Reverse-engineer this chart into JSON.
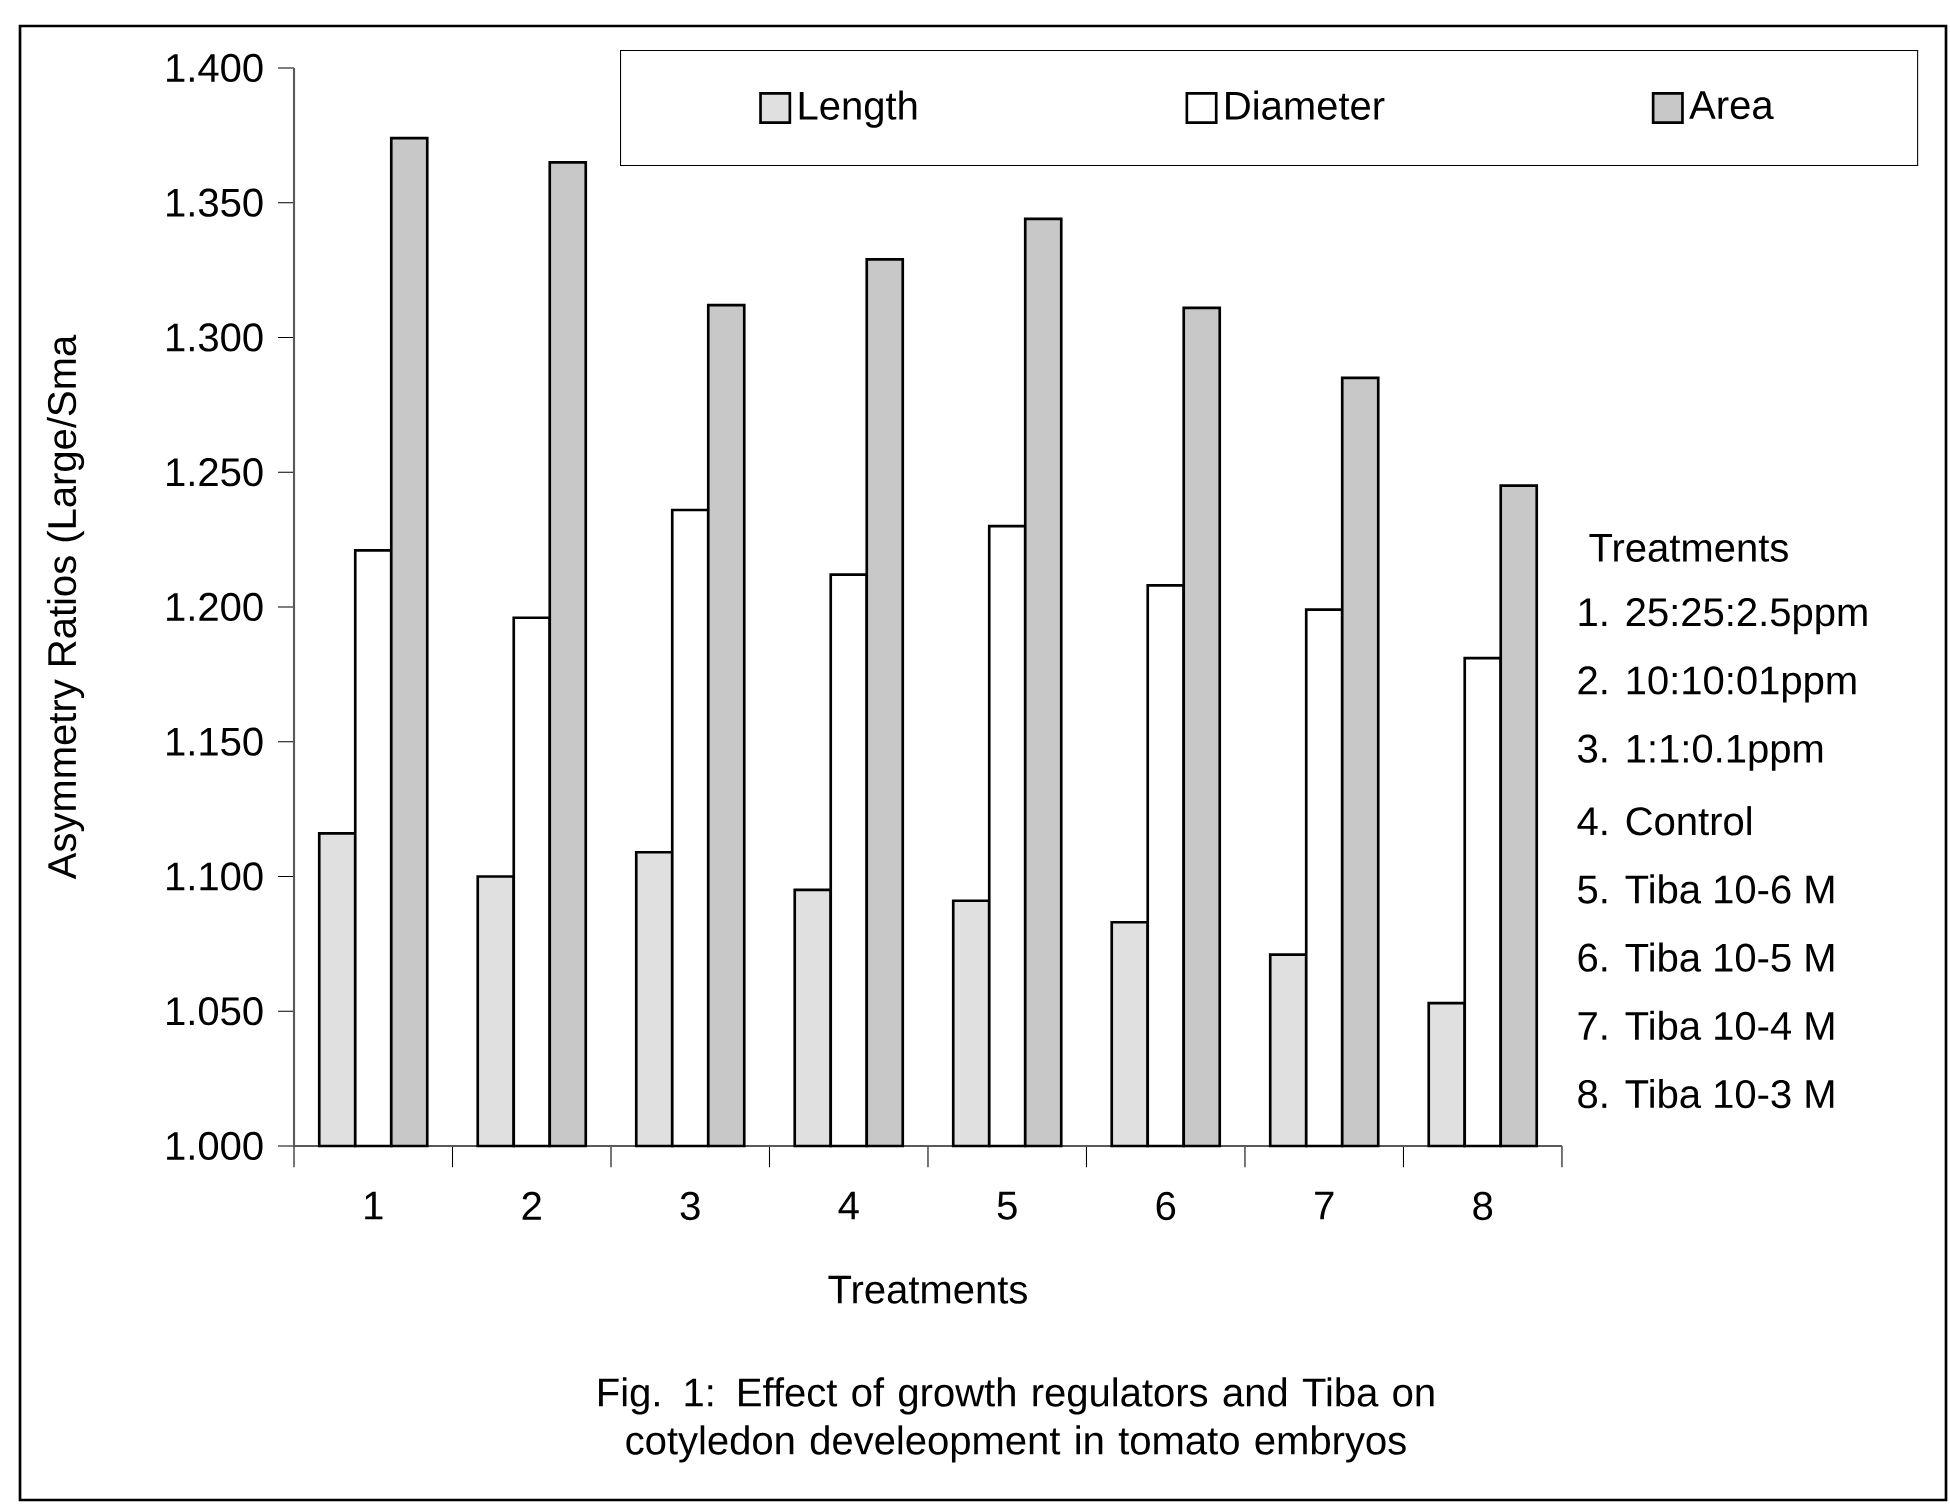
{
  "chart_data": {
    "type": "bar",
    "xlabel": "Treatments",
    "ylabel": "Asymmetry Ratios (Large/Sma",
    "categories": [
      "1",
      "2",
      "3",
      "4",
      "5",
      "6",
      "7",
      "8"
    ],
    "series": [
      {
        "name": "Length",
        "color": "#e0e0e0",
        "values": [
          1.116,
          1.1,
          1.109,
          1.095,
          1.091,
          1.083,
          1.071,
          1.053
        ]
      },
      {
        "name": "Diameter",
        "color": "#ffffff",
        "values": [
          1.221,
          1.196,
          1.236,
          1.212,
          1.23,
          1.208,
          1.199,
          1.181
        ]
      },
      {
        "name": "Area",
        "color": "#c8c8c8",
        "values": [
          1.374,
          1.365,
          1.312,
          1.329,
          1.344,
          1.311,
          1.285,
          1.245
        ]
      }
    ],
    "ylim": [
      1.0,
      1.4
    ],
    "yticks": [
      {
        "value": 1.0,
        "label": "1.000"
      },
      {
        "value": 1.05,
        "label": "1.050"
      },
      {
        "value": 1.1,
        "label": "1.100"
      },
      {
        "value": 1.15,
        "label": "1.150"
      },
      {
        "value": 1.2,
        "label": "1.200"
      },
      {
        "value": 1.25,
        "label": "1.250"
      },
      {
        "value": 1.3,
        "label": "1.300"
      },
      {
        "value": 1.35,
        "label": "1.350"
      },
      {
        "value": 1.4,
        "label": "1.400"
      }
    ],
    "legend": "top right",
    "annotations": [
      "Treatments",
      "1. 25:25:2.5ppm",
      "2. 10:10:01ppm",
      "3. 1:1:0.1ppm",
      "4. Control",
      "5. Tiba 10-6 M",
      "6. Tiba 10-5 M",
      "7. Tiba 10-4 M",
      "8. Tiba 10-3 M",
      "Fig. 1: Effect of growth regulators and Tiba on cotyledon develeopment in tomato embryos"
    ]
  }
}
